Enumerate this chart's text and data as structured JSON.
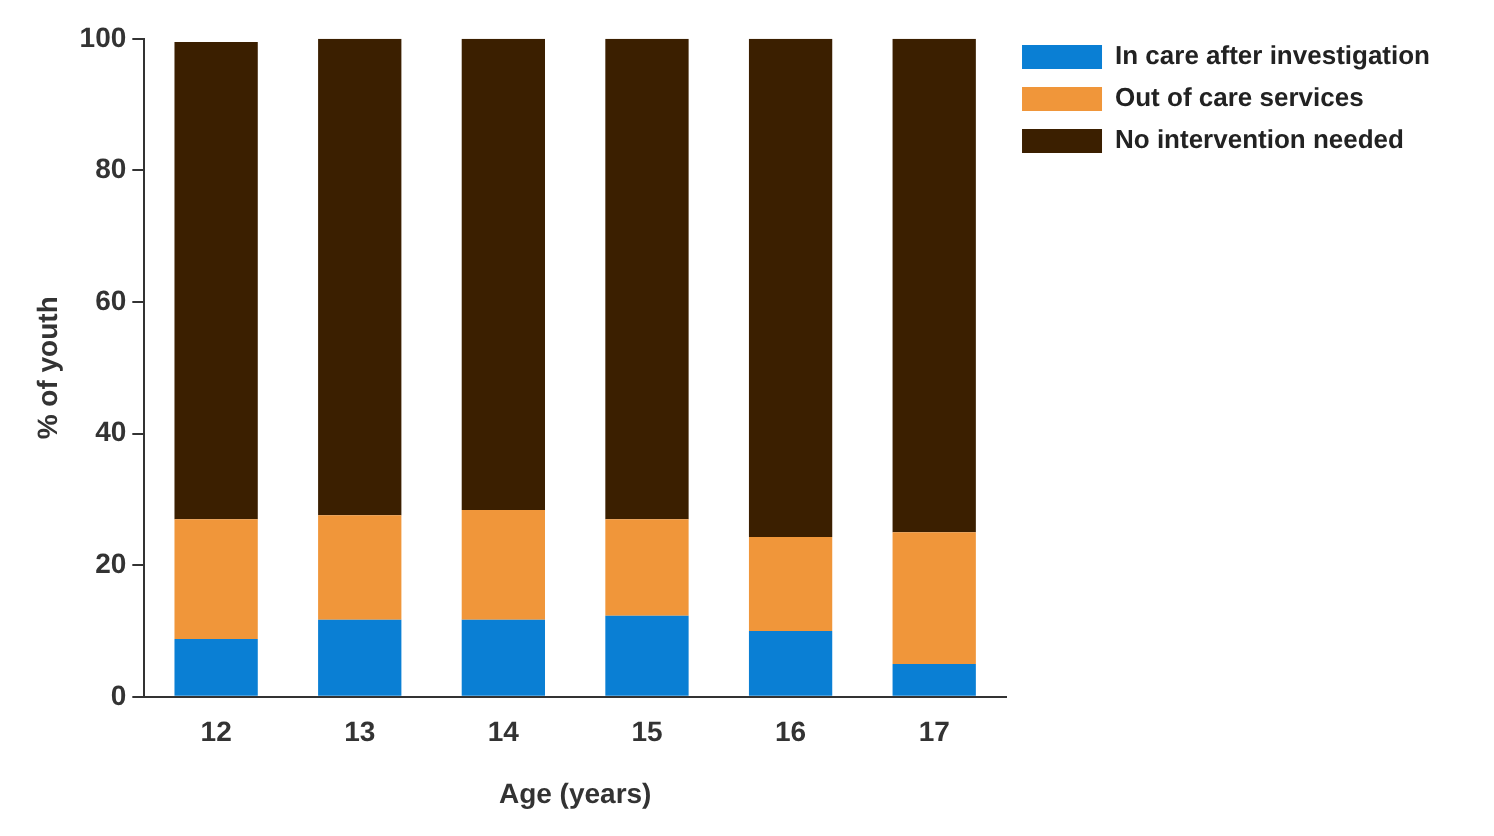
{
  "chart_data": {
    "type": "bar",
    "stacked": true,
    "xlabel": "Age (years)",
    "ylabel": "% of youth",
    "categories": [
      "12",
      "13",
      "14",
      "15",
      "16",
      "17"
    ],
    "series": [
      {
        "name": "In care after investigation",
        "color": "#0a7fd4",
        "values": [
          8.8,
          11.7,
          11.7,
          12.3,
          10,
          5
        ]
      },
      {
        "name": "Out of care services",
        "color": "#f0963a",
        "values": [
          18.2,
          15.9,
          16.7,
          14.7,
          14.3,
          20
        ]
      },
      {
        "name": "No intervention needed",
        "color": "#3b1f00",
        "values": [
          72.5,
          72.4,
          71.6,
          73,
          75.7,
          75
        ]
      }
    ],
    "ylim": [
      0,
      100
    ],
    "yticks": [
      0,
      20,
      40,
      60,
      80,
      100
    ],
    "grid": false,
    "legend": "top right"
  }
}
